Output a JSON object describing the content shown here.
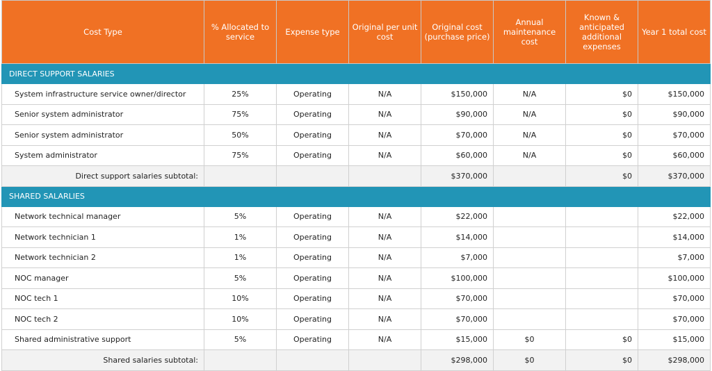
{
  "colors": {
    "header": "#f07124",
    "section": "#2295b6",
    "subtotal": "#f2f2f2"
  },
  "headers": [
    "Cost Type",
    "% Allocated to service",
    "Expense type",
    "Original per unit cost",
    "Original cost (purchase price)",
    "Annual maintenance cost",
    "Known & anticipated additional expenses",
    "Year 1 total cost"
  ],
  "sections": [
    {
      "title": "DIRECT SUPPORT SALARIES",
      "rows": [
        [
          "System infrastructure service owner/director",
          "25%",
          "Operating",
          "N/A",
          "$150,000",
          "N/A",
          "$0",
          "$150,000"
        ],
        [
          "Senior system administrator",
          "75%",
          "Operating",
          "N/A",
          "$90,000",
          "N/A",
          "$0",
          "$90,000"
        ],
        [
          "Senior system administrator",
          "50%",
          "Operating",
          "N/A",
          "$70,000",
          "N/A",
          "$0",
          "$70,000"
        ],
        [
          "System administrator",
          "75%",
          "Operating",
          "N/A",
          "$60,000",
          "N/A",
          "$0",
          "$60,000"
        ]
      ],
      "subtotal": [
        "Direct support salaries subtotal:",
        "",
        "",
        "",
        "$370,000",
        "",
        "$0",
        "$370,000"
      ]
    },
    {
      "title": "SHARED SALARLIES",
      "rows": [
        [
          "Network technical manager",
          "5%",
          "Operating",
          "N/A",
          "$22,000",
          "",
          "",
          "$22,000"
        ],
        [
          "Network technician 1",
          "1%",
          "Operating",
          "N/A",
          "$14,000",
          "",
          "",
          "$14,000"
        ],
        [
          "Network technician 2",
          "1%",
          "Operating",
          "N/A",
          "$7,000",
          "",
          "",
          "$7,000"
        ],
        [
          "NOC manager",
          "5%",
          "Operating",
          "N/A",
          "$100,000",
          "",
          "",
          "$100,000"
        ],
        [
          "NOC tech 1",
          "10%",
          "Operating",
          "N/A",
          "$70,000",
          "",
          "",
          "$70,000"
        ],
        [
          "NOC tech 2",
          "10%",
          "Operating",
          "N/A",
          "$70,000",
          "",
          "",
          "$70,000"
        ],
        [
          "Shared administrative support",
          "5%",
          "Operating",
          "N/A",
          "$15,000",
          "$0",
          "$0",
          "$15,000"
        ]
      ],
      "subtotal": [
        "Shared salaries subtotal:",
        "",
        "",
        "",
        "$298,000",
        "$0",
        "$0",
        "$298,000"
      ]
    }
  ]
}
